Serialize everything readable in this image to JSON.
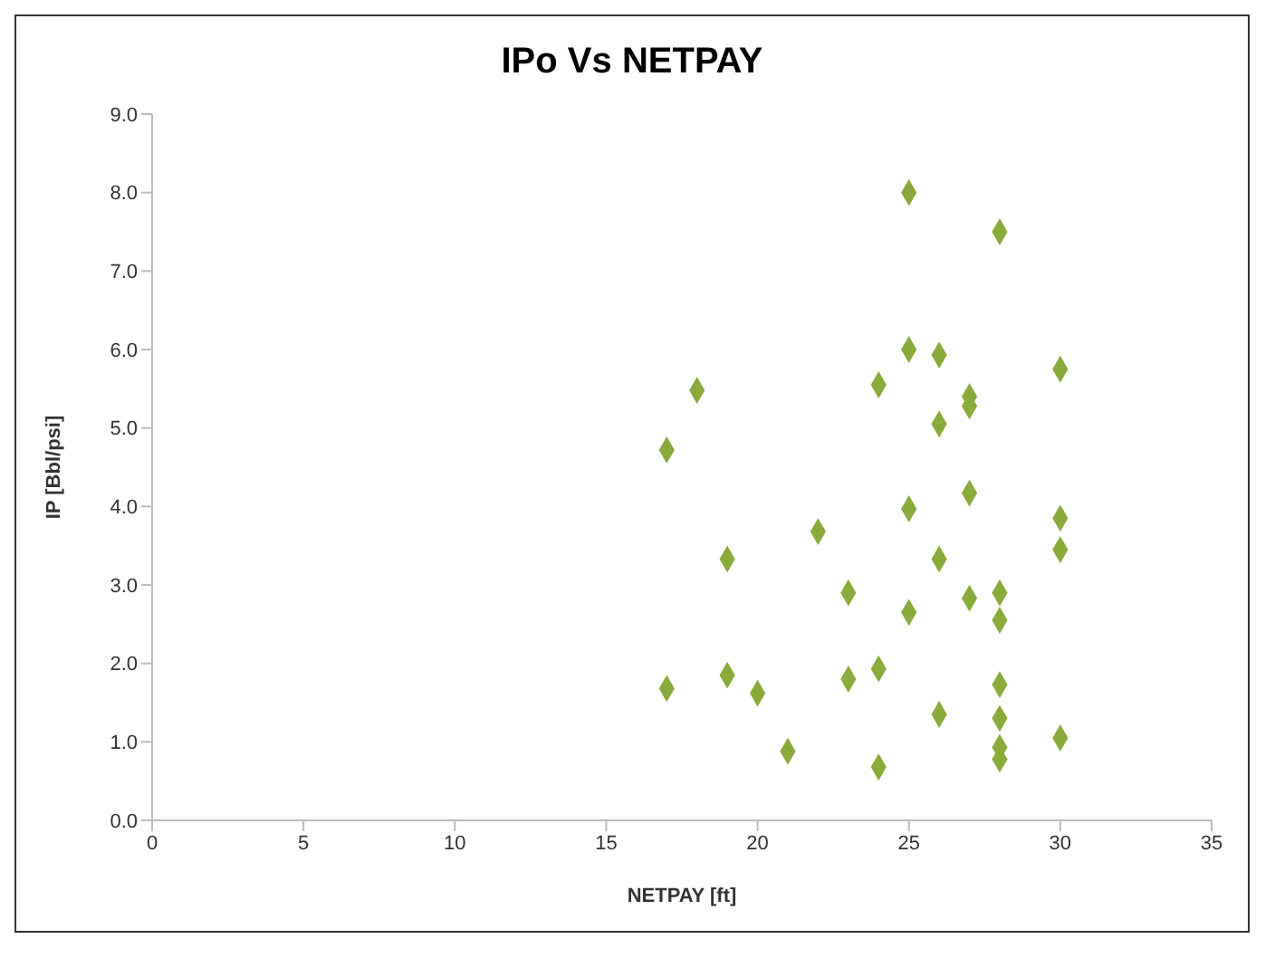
{
  "chart_data": {
    "type": "scatter",
    "title": "IPo Vs NETPAY",
    "xlabel": "NETPAY [ft]",
    "ylabel": "IP [Bbl/psi]",
    "x": [
      25,
      28,
      25,
      26,
      24,
      30,
      18,
      27,
      27,
      26,
      17,
      27,
      25,
      30,
      22,
      30,
      19,
      26,
      23,
      28,
      27,
      25,
      28,
      24,
      19,
      23,
      28,
      17,
      20,
      26,
      28,
      30,
      21,
      28,
      28,
      24
    ],
    "values": [
      8.0,
      7.5,
      6.0,
      5.93,
      5.55,
      5.75,
      5.48,
      5.4,
      5.28,
      5.05,
      4.72,
      4.17,
      3.97,
      3.85,
      3.68,
      3.45,
      3.33,
      3.33,
      2.9,
      2.9,
      2.83,
      2.65,
      2.55,
      1.93,
      1.85,
      1.8,
      1.73,
      1.68,
      1.62,
      1.35,
      1.3,
      1.05,
      0.88,
      0.93,
      0.78,
      0.68
    ],
    "color": "#8aaa3c",
    "marker": "diamond",
    "xlim": [
      0,
      35
    ],
    "xticks": [
      0,
      5,
      10,
      15,
      20,
      25,
      30,
      35
    ],
    "ylim": [
      0,
      9
    ],
    "yticks": [
      {
        "value": 0,
        "label": "0.0"
      },
      {
        "value": 1,
        "label": "1.0"
      },
      {
        "value": 2,
        "label": "2.0"
      },
      {
        "value": 3,
        "label": "3.0"
      },
      {
        "value": 4,
        "label": "4.0"
      },
      {
        "value": 5,
        "label": "5.0"
      },
      {
        "value": 6,
        "label": "6.0"
      },
      {
        "value": 7,
        "label": "7.0"
      },
      {
        "value": 8,
        "label": "8.0"
      },
      {
        "value": 9,
        "label": "9.0"
      }
    ],
    "grid": false,
    "legend": false
  }
}
